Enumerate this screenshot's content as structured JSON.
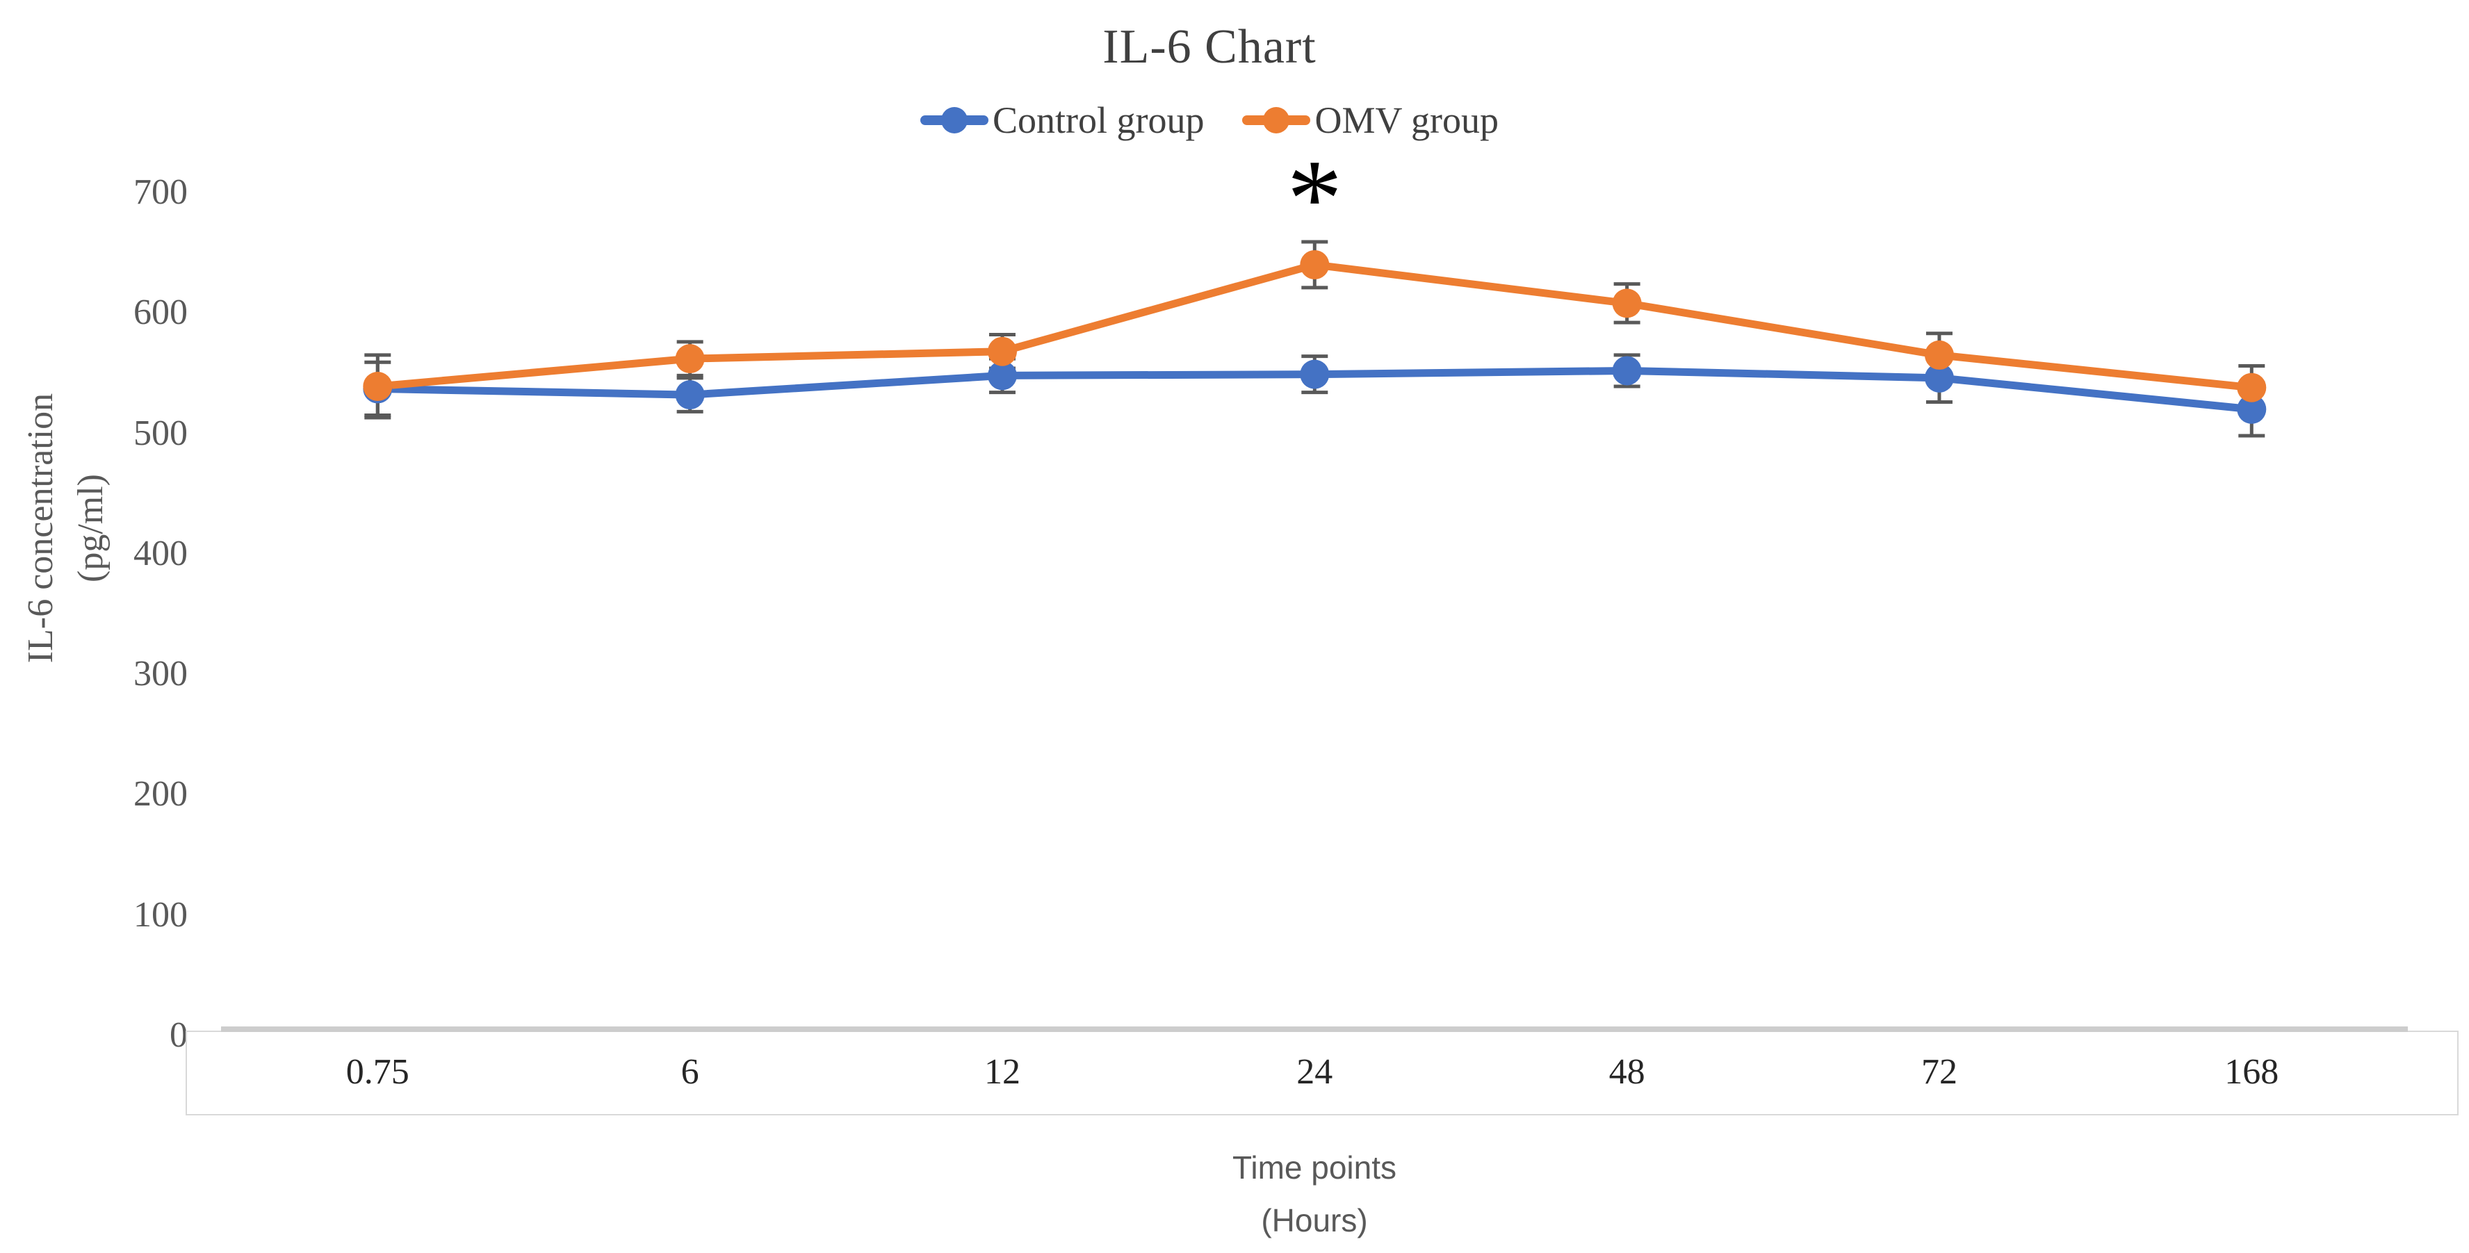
{
  "chart_data": {
    "type": "line",
    "title": "IL-6 Chart",
    "categories": [
      "0.75",
      "6",
      "12",
      "24",
      "48",
      "72",
      "168"
    ],
    "series": [
      {
        "name": "Control group",
        "color": "#4472C4",
        "values": [
          537,
          532,
          548,
          549,
          552,
          546,
          520
        ],
        "errors": [
          22,
          14,
          14,
          15,
          13,
          20,
          22
        ]
      },
      {
        "name": "OMV group",
        "color": "#ED7D31",
        "values": [
          539,
          562,
          568,
          640,
          608,
          565,
          538
        ],
        "errors": [
          26,
          14,
          14,
          19,
          16,
          18,
          18
        ]
      }
    ],
    "xlabel_line1": "Time points",
    "xlabel_line2": "(Hours)",
    "ylabel_line1": "IL-6 concentration",
    "ylabel_line2": "(pg/ml)",
    "yticks": [
      0,
      100,
      200,
      300,
      400,
      500,
      600,
      700
    ],
    "ylim": [
      0,
      700
    ],
    "grid": "off",
    "legend_position": "top",
    "annotation": {
      "text": "*",
      "category": "24",
      "series": "OMV group",
      "color": "#000000"
    },
    "error_bar_color": "#595959",
    "axis_line_color": "#CDCDCD",
    "label_box_border_color": "#D9D9D9"
  }
}
